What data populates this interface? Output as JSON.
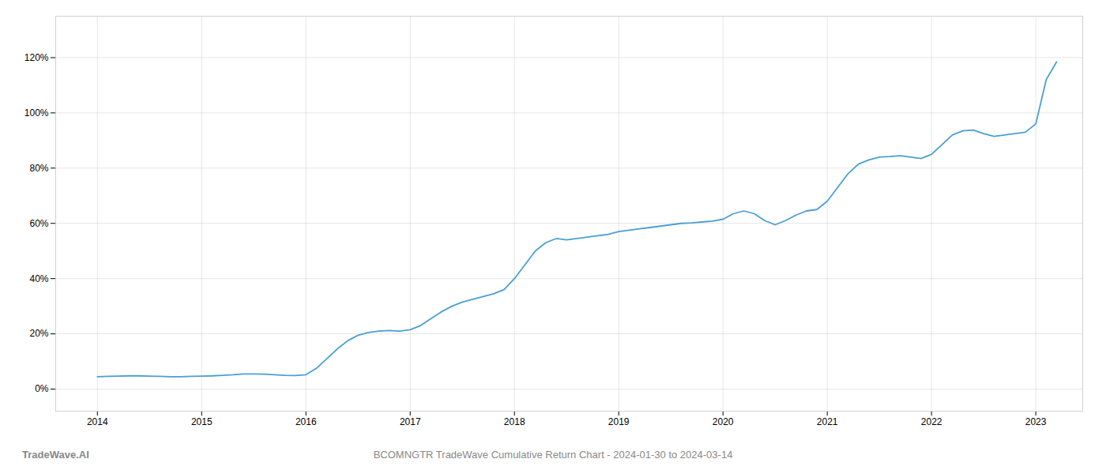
{
  "chart_data": {
    "type": "line",
    "title": "BCOMNGTR TradeWave Cumulative Return Chart - 2024-01-30 to 2024-03-14",
    "annotations": [
      "TradeWave.AI"
    ],
    "color": "#4a9fd4",
    "grid": true,
    "xlim": [
      2013.6,
      2023.45
    ],
    "ylim": [
      -8,
      135
    ],
    "xticks": [
      2014,
      2015,
      2016,
      2017,
      2018,
      2019,
      2020,
      2021,
      2022,
      2023
    ],
    "yticks": [
      {
        "value": 0,
        "label": "0%"
      },
      {
        "value": 20,
        "label": "20%"
      },
      {
        "value": 40,
        "label": "40%"
      },
      {
        "value": 60,
        "label": "60%"
      },
      {
        "value": 80,
        "label": "80%"
      },
      {
        "value": 100,
        "label": "100%"
      },
      {
        "value": 120,
        "label": "120%"
      }
    ],
    "x": [
      2014.0,
      2014.1,
      2014.2,
      2014.3,
      2014.4,
      2014.5,
      2014.6,
      2014.7,
      2014.8,
      2014.9,
      2015.0,
      2015.1,
      2015.2,
      2015.3,
      2015.4,
      2015.5,
      2015.6,
      2015.7,
      2015.8,
      2015.9,
      2016.0,
      2016.1,
      2016.2,
      2016.3,
      2016.4,
      2016.5,
      2016.6,
      2016.7,
      2016.8,
      2016.9,
      2017.0,
      2017.1,
      2017.2,
      2017.3,
      2017.4,
      2017.5,
      2017.6,
      2017.7,
      2017.8,
      2017.9,
      2018.0,
      2018.1,
      2018.2,
      2018.3,
      2018.4,
      2018.5,
      2018.6,
      2018.7,
      2018.8,
      2018.9,
      2019.0,
      2019.1,
      2019.2,
      2019.3,
      2019.4,
      2019.5,
      2019.6,
      2019.7,
      2019.8,
      2019.9,
      2020.0,
      2020.1,
      2020.2,
      2020.3,
      2020.4,
      2020.5,
      2020.6,
      2020.7,
      2020.8,
      2020.9,
      2021.0,
      2021.1,
      2021.2,
      2021.3,
      2021.4,
      2021.5,
      2021.6,
      2021.7,
      2021.8,
      2021.9,
      2022.0,
      2022.1,
      2022.2,
      2022.3,
      2022.4,
      2022.5,
      2022.6,
      2022.7,
      2022.8,
      2022.9,
      2023.0,
      2023.1,
      2023.2
    ],
    "values": [
      4.5,
      4.6,
      4.7,
      4.8,
      4.8,
      4.7,
      4.6,
      4.5,
      4.5,
      4.6,
      4.7,
      4.8,
      5.0,
      5.2,
      5.5,
      5.5,
      5.4,
      5.2,
      5.0,
      4.9,
      5.2,
      7.5,
      11.0,
      14.5,
      17.5,
      19.5,
      20.5,
      21.0,
      21.2,
      21.0,
      21.5,
      23.0,
      25.5,
      28.0,
      30.0,
      31.5,
      32.5,
      33.5,
      34.5,
      36.0,
      40.0,
      45.0,
      50.0,
      53.0,
      54.5,
      54.0,
      54.5,
      55.0,
      55.5,
      56.0,
      57.0,
      57.5,
      58.0,
      58.5,
      59.0,
      59.5,
      60.0,
      60.2,
      60.5,
      60.8,
      61.5,
      63.5,
      64.5,
      63.5,
      61.0,
      59.5,
      61.0,
      63.0,
      64.5,
      65.0,
      68.0,
      73.0,
      78.0,
      81.5,
      83.0,
      84.0,
      84.2,
      84.5,
      84.0,
      83.5,
      85.0,
      88.5,
      92.0,
      93.5,
      93.8,
      92.5,
      91.5,
      92.0,
      92.5,
      93.0,
      96.0,
      112.0,
      118.5
    ]
  }
}
